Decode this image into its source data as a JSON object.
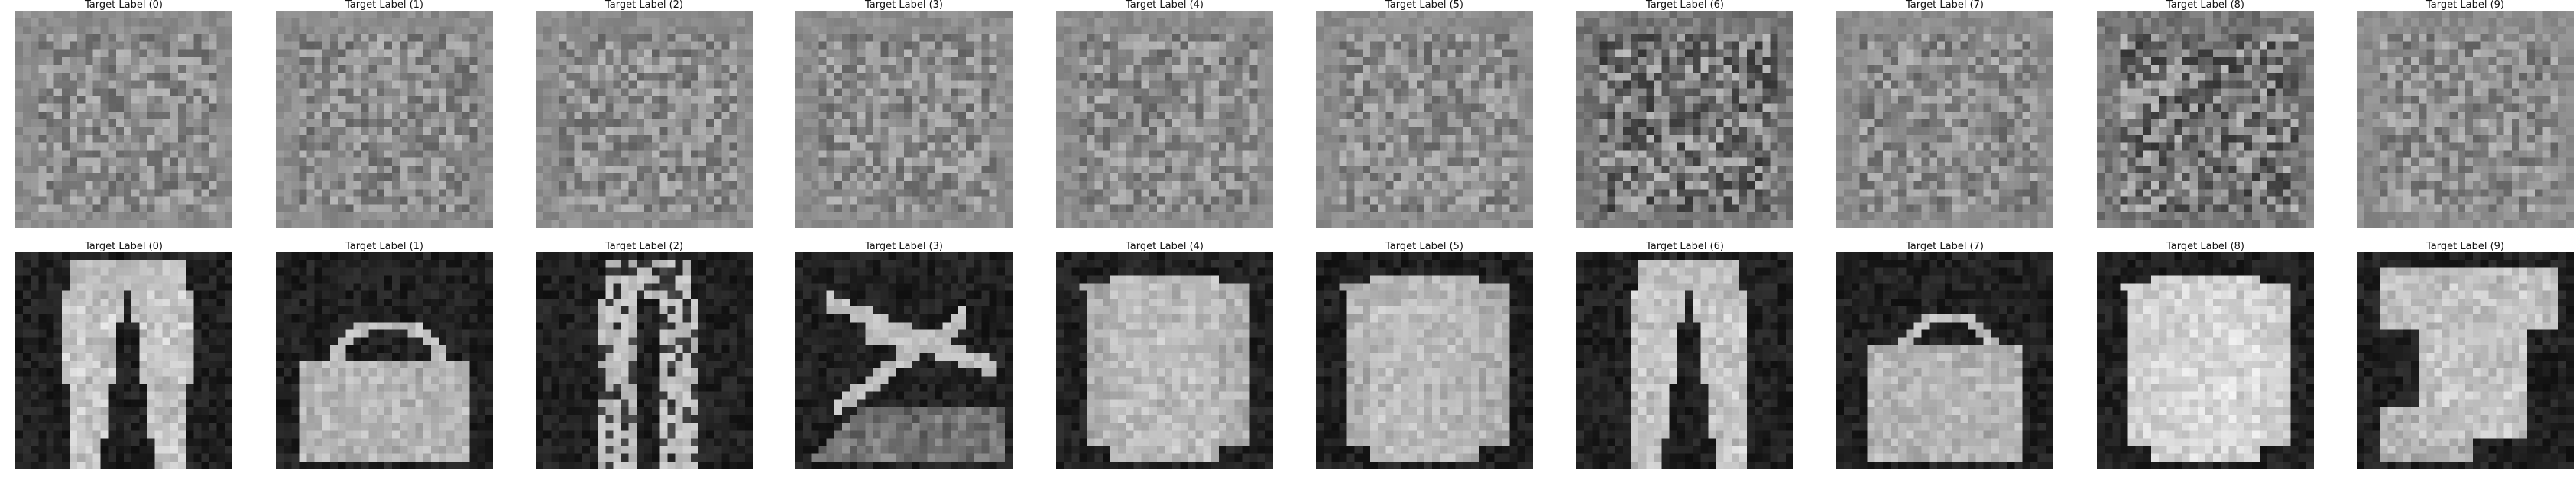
{
  "figure": {
    "rows": [
      {
        "row_name": "perturbation",
        "panels": [
          {
            "title": "Target Label (0)",
            "kind": "noise",
            "style": "light"
          },
          {
            "title": "Target Label (1)",
            "kind": "noise",
            "style": "light"
          },
          {
            "title": "Target Label (2)",
            "kind": "noise",
            "style": "light"
          },
          {
            "title": "Target Label (3)",
            "kind": "noise",
            "style": "light"
          },
          {
            "title": "Target Label (4)",
            "kind": "noise",
            "style": "light"
          },
          {
            "title": "Target Label (5)",
            "kind": "noise",
            "style": "light"
          },
          {
            "title": "Target Label (6)",
            "kind": "noise",
            "style": "dark"
          },
          {
            "title": "Target Label (7)",
            "kind": "noise",
            "style": "light"
          },
          {
            "title": "Target Label (8)",
            "kind": "noise",
            "style": "dark"
          },
          {
            "title": "Target Label (9)",
            "kind": "noise",
            "style": "light"
          }
        ]
      },
      {
        "row_name": "adversarial-image",
        "panels": [
          {
            "title": "Target Label (0)",
            "kind": "trouser",
            "style": "dark"
          },
          {
            "title": "Target Label (1)",
            "kind": "bag",
            "style": "dark"
          },
          {
            "title": "Target Label (2)",
            "kind": "trouser-patterned",
            "style": "dark"
          },
          {
            "title": "Target Label (3)",
            "kind": "sandal",
            "style": "dark"
          },
          {
            "title": "Target Label (4)",
            "kind": "coat",
            "style": "dark"
          },
          {
            "title": "Target Label (5)",
            "kind": "pullover",
            "style": "dark"
          },
          {
            "title": "Target Label (6)",
            "kind": "trouser-slim",
            "style": "dark"
          },
          {
            "title": "Target Label (7)",
            "kind": "tote-bag",
            "style": "dark"
          },
          {
            "title": "Target Label (8)",
            "kind": "pullover-light",
            "style": "dark"
          },
          {
            "title": "Target Label (9)",
            "kind": "tshirt",
            "style": "dark"
          }
        ]
      }
    ]
  }
}
